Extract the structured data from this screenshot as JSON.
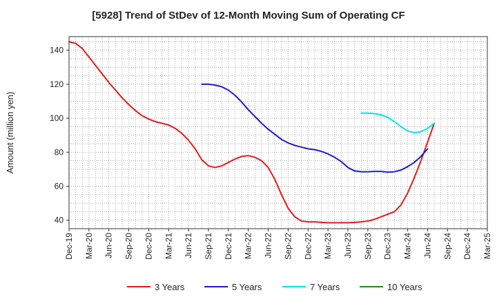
{
  "chart_data": {
    "type": "line",
    "title": "[5928]  Trend of StDev of 12-Month Moving Sum of Operating CF",
    "ylabel": "Amount (million yen)",
    "xlabel": "",
    "ylim": [
      35,
      148
    ],
    "yticks": [
      40,
      60,
      80,
      100,
      120,
      140
    ],
    "x_range": [
      "2019-12",
      "2025-03"
    ],
    "xticks": [
      "Dec-19",
      "Mar-20",
      "Jun-20",
      "Sep-20",
      "Dec-20",
      "Mar-21",
      "Jun-21",
      "Sep-21",
      "Dec-21",
      "Mar-22",
      "Jun-22",
      "Sep-22",
      "Dec-22",
      "Mar-23",
      "Jun-23",
      "Sep-23",
      "Dec-23",
      "Mar-24",
      "Jun-24",
      "Sep-24",
      "Dec-24",
      "Mar-25"
    ],
    "grid": true,
    "legend_position": "bottom",
    "series": [
      {
        "name": "3 Years",
        "color": "#e31a1c",
        "points": [
          [
            "2019-12",
            145
          ],
          [
            "2020-01",
            144
          ],
          [
            "2020-02",
            141
          ],
          [
            "2020-03",
            136
          ],
          [
            "2020-04",
            131
          ],
          [
            "2020-05",
            126
          ],
          [
            "2020-06",
            121
          ],
          [
            "2020-07",
            116.5
          ],
          [
            "2020-08",
            112
          ],
          [
            "2020-09",
            108
          ],
          [
            "2020-10",
            104.5
          ],
          [
            "2020-11",
            101.5
          ],
          [
            "2020-12",
            99.5
          ],
          [
            "2021-01",
            98
          ],
          [
            "2021-02",
            97
          ],
          [
            "2021-03",
            96
          ],
          [
            "2021-04",
            94
          ],
          [
            "2021-05",
            91
          ],
          [
            "2021-06",
            87
          ],
          [
            "2021-07",
            82
          ],
          [
            "2021-08",
            75.5
          ],
          [
            "2021-09",
            72
          ],
          [
            "2021-10",
            71
          ],
          [
            "2021-11",
            72
          ],
          [
            "2021-12",
            74
          ],
          [
            "2022-01",
            76
          ],
          [
            "2022-02",
            77.5
          ],
          [
            "2022-03",
            78
          ],
          [
            "2022-04",
            77
          ],
          [
            "2022-05",
            75
          ],
          [
            "2022-06",
            71
          ],
          [
            "2022-07",
            64
          ],
          [
            "2022-08",
            55
          ],
          [
            "2022-09",
            47
          ],
          [
            "2022-10",
            42
          ],
          [
            "2022-11",
            39.5
          ],
          [
            "2022-12",
            39
          ],
          [
            "2023-01",
            39
          ],
          [
            "2023-02",
            38.7
          ],
          [
            "2023-03",
            38.5
          ],
          [
            "2023-04",
            38.5
          ],
          [
            "2023-05",
            38.5
          ],
          [
            "2023-06",
            38.5
          ],
          [
            "2023-07",
            38.7
          ],
          [
            "2023-08",
            39
          ],
          [
            "2023-09",
            39.5
          ],
          [
            "2023-10",
            40.5
          ],
          [
            "2023-11",
            42
          ],
          [
            "2023-12",
            43.5
          ],
          [
            "2024-01",
            45
          ],
          [
            "2024-02",
            49
          ],
          [
            "2024-03",
            56
          ],
          [
            "2024-04",
            65
          ],
          [
            "2024-05",
            75
          ],
          [
            "2024-06",
            86
          ],
          [
            "2024-07",
            97
          ]
        ]
      },
      {
        "name": "5 Years",
        "color": "#1a1acc",
        "points": [
          [
            "2021-08",
            120
          ],
          [
            "2021-09",
            120
          ],
          [
            "2021-10",
            119.5
          ],
          [
            "2021-11",
            118.5
          ],
          [
            "2021-12",
            116.5
          ],
          [
            "2022-01",
            113.5
          ],
          [
            "2022-02",
            109.5
          ],
          [
            "2022-03",
            105
          ],
          [
            "2022-04",
            101
          ],
          [
            "2022-05",
            97
          ],
          [
            "2022-06",
            93.5
          ],
          [
            "2022-07",
            90.5
          ],
          [
            "2022-08",
            87.5
          ],
          [
            "2022-09",
            85.5
          ],
          [
            "2022-10",
            84
          ],
          [
            "2022-11",
            83
          ],
          [
            "2022-12",
            82
          ],
          [
            "2023-01",
            81.5
          ],
          [
            "2023-02",
            80.5
          ],
          [
            "2023-03",
            79
          ],
          [
            "2023-04",
            77
          ],
          [
            "2023-05",
            74.5
          ],
          [
            "2023-06",
            71
          ],
          [
            "2023-07",
            69
          ],
          [
            "2023-08",
            68.5
          ],
          [
            "2023-09",
            68.5
          ],
          [
            "2023-10",
            68.7
          ],
          [
            "2023-11",
            68.7
          ],
          [
            "2023-12",
            68.3
          ],
          [
            "2024-01",
            68.5
          ],
          [
            "2024-02",
            69.5
          ],
          [
            "2024-03",
            71.5
          ],
          [
            "2024-04",
            74
          ],
          [
            "2024-05",
            77.5
          ],
          [
            "2024-06",
            82
          ]
        ]
      },
      {
        "name": "7 Years",
        "color": "#00e5ee",
        "points": [
          [
            "2023-08",
            103
          ],
          [
            "2023-09",
            103
          ],
          [
            "2023-10",
            102.7
          ],
          [
            "2023-11",
            102
          ],
          [
            "2023-12",
            100.5
          ],
          [
            "2024-01",
            98
          ],
          [
            "2024-02",
            95
          ],
          [
            "2024-03",
            92.5
          ],
          [
            "2024-04",
            91.5
          ],
          [
            "2024-05",
            92
          ],
          [
            "2024-06",
            94
          ],
          [
            "2024-07",
            97
          ]
        ]
      },
      {
        "name": "10 Years",
        "color": "#1a8c1a",
        "points": []
      }
    ]
  }
}
